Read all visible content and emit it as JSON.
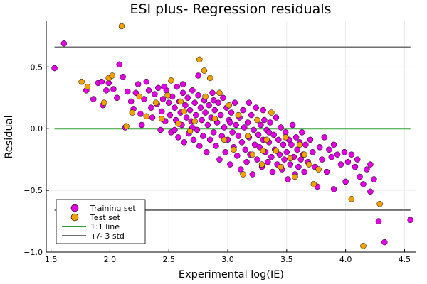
{
  "chart_data": {
    "type": "scatter",
    "title": "ESI plus- Regression residuals",
    "xlabel": "Experimental log(IE)",
    "ylabel": "Residual",
    "xlim": [
      1.46,
      4.6
    ],
    "ylim": [
      -1.0,
      0.87
    ],
    "x_ticks": [
      1.5,
      2.0,
      2.5,
      3.0,
      3.5,
      4.0,
      4.5
    ],
    "x_tick_labels": [
      "1.5",
      "2.0",
      "2.5",
      "3.0",
      "3.5",
      "4.0",
      "4.5"
    ],
    "y_ticks": [
      -1.0,
      -0.5,
      0.0,
      0.5
    ],
    "y_tick_labels": [
      "−1.0",
      "−0.5",
      "0.0",
      "0.5"
    ],
    "grid": true,
    "legend_position": "bottom-left",
    "series": [
      {
        "name": "Training set",
        "kind": "scatter",
        "color": "#e000e0",
        "points": [
          [
            1.53,
            0.49
          ],
          [
            1.61,
            0.69
          ],
          [
            1.8,
            0.31
          ],
          [
            1.86,
            0.24
          ],
          [
            1.9,
            0.37
          ],
          [
            1.93,
            0.38
          ],
          [
            1.94,
            0.19
          ],
          [
            1.97,
            0.31
          ],
          [
            1.99,
            0.37
          ],
          [
            2.03,
            0.32
          ],
          [
            2.06,
            0.25
          ],
          [
            2.08,
            0.52
          ],
          [
            2.11,
            0.42
          ],
          [
            2.13,
            0.01
          ],
          [
            2.15,
            0.3
          ],
          [
            2.18,
            0.22
          ],
          [
            2.2,
            0.16
          ],
          [
            2.22,
            0.29
          ],
          [
            2.24,
            0.36
          ],
          [
            2.26,
            0.12
          ],
          [
            2.27,
            0.03
          ],
          [
            2.29,
            0.24
          ],
          [
            2.31,
            0.38
          ],
          [
            2.33,
            0.31
          ],
          [
            2.35,
            0.17
          ],
          [
            2.36,
            0.09
          ],
          [
            2.38,
            0.28
          ],
          [
            2.4,
            0.2
          ],
          [
            2.41,
            0.33
          ],
          [
            2.43,
            -0.01
          ],
          [
            2.44,
            0.14
          ],
          [
            2.45,
            0.24
          ],
          [
            2.47,
            0.06
          ],
          [
            2.48,
            0.31
          ],
          [
            2.5,
            0.21
          ],
          [
            2.51,
            0.11
          ],
          [
            2.52,
            -0.03
          ],
          [
            2.53,
            0.26
          ],
          [
            2.55,
            0.17
          ],
          [
            2.56,
            0.07
          ],
          [
            2.57,
            0.34
          ],
          [
            2.58,
            -0.07
          ],
          [
            2.59,
            0.22
          ],
          [
            2.6,
            0.13
          ],
          [
            2.61,
            0.03
          ],
          [
            2.62,
            0.29
          ],
          [
            2.63,
            -0.11
          ],
          [
            2.64,
            0.19
          ],
          [
            2.65,
            0.09
          ],
          [
            2.66,
            0.25
          ],
          [
            2.67,
            -0.04
          ],
          [
            2.68,
            0.15
          ],
          [
            2.69,
            0.06
          ],
          [
            2.7,
            0.31
          ],
          [
            2.71,
            -0.09
          ],
          [
            2.72,
            0.21
          ],
          [
            2.73,
            0.11
          ],
          [
            2.74,
            -0.01
          ],
          [
            2.75,
            0.27
          ],
          [
            2.76,
            -0.14
          ],
          [
            2.77,
            0.17
          ],
          [
            2.78,
            0.07
          ],
          [
            2.79,
            -0.06
          ],
          [
            2.8,
            0.23
          ],
          [
            2.81,
            0.13
          ],
          [
            2.82,
            -0.19
          ],
          [
            2.83,
            0.03
          ],
          [
            2.84,
            0.19
          ],
          [
            2.85,
            -0.09
          ],
          [
            2.86,
            0.09
          ],
          [
            2.87,
            0.29
          ],
          [
            2.88,
            -0.03
          ],
          [
            2.89,
            0.15
          ],
          [
            2.9,
            -0.14
          ],
          [
            2.91,
            0.05
          ],
          [
            2.92,
            0.21
          ],
          [
            2.93,
            -0.25
          ],
          [
            2.94,
            0.11
          ],
          [
            2.95,
            -0.06
          ],
          [
            2.96,
            0.25
          ],
          [
            2.97,
            0.01
          ],
          [
            2.98,
            -0.19
          ],
          [
            2.99,
            0.17
          ],
          [
            3.0,
            -0.09
          ],
          [
            3.01,
            0.07
          ],
          [
            3.02,
            -0.29
          ],
          [
            3.03,
            0.13
          ],
          [
            3.04,
            -0.03
          ],
          [
            3.05,
            -0.15
          ],
          [
            3.06,
            0.21
          ],
          [
            3.07,
            0.03
          ],
          [
            3.08,
            -0.22
          ],
          [
            3.09,
            -0.06
          ],
          [
            3.1,
            0.09
          ],
          [
            3.11,
            -0.33
          ],
          [
            3.12,
            -0.11
          ],
          [
            3.13,
            0.15
          ],
          [
            3.14,
            0.01
          ],
          [
            3.15,
            -0.17
          ],
          [
            3.16,
            -0.27
          ],
          [
            3.17,
            0.05
          ],
          [
            3.18,
            -0.07
          ],
          [
            3.19,
            -0.21
          ],
          [
            3.2,
            0.11
          ],
          [
            3.21,
            -0.37
          ],
          [
            3.22,
            -0.01
          ],
          [
            3.23,
            -0.13
          ],
          [
            3.24,
            0.17
          ],
          [
            3.25,
            -0.25
          ],
          [
            3.26,
            -0.05
          ],
          [
            3.27,
            -0.15
          ],
          [
            3.28,
            0.03
          ],
          [
            3.29,
            -0.31
          ],
          [
            3.3,
            -0.09
          ],
          [
            3.31,
            0.07
          ],
          [
            3.32,
            -0.19
          ],
          [
            3.33,
            -0.01
          ],
          [
            3.34,
            -0.27
          ],
          [
            3.35,
            -0.11
          ],
          [
            3.36,
            0.05
          ],
          [
            3.37,
            -0.23
          ],
          [
            3.38,
            -0.35
          ],
          [
            3.39,
            -0.05
          ],
          [
            3.4,
            -0.17
          ],
          [
            3.41,
            0.09
          ],
          [
            3.42,
            -0.29
          ],
          [
            3.43,
            -0.09
          ],
          [
            3.44,
            -0.21
          ],
          [
            3.45,
            0.01
          ],
          [
            3.46,
            -0.33
          ],
          [
            3.47,
            -0.13
          ],
          [
            3.48,
            -0.25
          ],
          [
            3.49,
            -0.03
          ],
          [
            3.5,
            -0.19
          ],
          [
            3.51,
            -0.41
          ],
          [
            3.52,
            -0.09
          ],
          [
            3.53,
            -0.29
          ],
          [
            3.54,
            -0.13
          ],
          [
            3.55,
            0.03
          ],
          [
            3.56,
            -0.23
          ],
          [
            3.57,
            -0.37
          ],
          [
            3.58,
            -0.07
          ],
          [
            3.59,
            -0.17
          ],
          [
            3.6,
            -0.31
          ],
          [
            3.61,
            -0.11
          ],
          [
            3.62,
            -0.25
          ],
          [
            3.63,
            -0.03
          ],
          [
            3.64,
            -0.21
          ],
          [
            3.65,
            -0.35
          ],
          [
            3.66,
            -0.13
          ],
          [
            3.68,
            -0.27
          ],
          [
            3.7,
            -0.09
          ],
          [
            3.72,
            -0.19
          ],
          [
            3.74,
            -0.31
          ],
          [
            3.76,
            -0.47
          ],
          [
            3.78,
            -0.15
          ],
          [
            3.8,
            -0.25
          ],
          [
            3.82,
            -0.07
          ],
          [
            3.84,
            -0.35
          ],
          [
            3.86,
            -0.17
          ],
          [
            3.88,
            -0.23
          ],
          [
            3.9,
            -0.13
          ],
          [
            3.93,
            -0.21
          ],
          [
            3.96,
            -0.29
          ],
          [
            3.99,
            -0.19
          ],
          [
            4.02,
            -0.27
          ],
          [
            4.05,
            -0.21
          ],
          [
            4.08,
            -0.31
          ],
          [
            4.12,
            -0.39
          ],
          [
            4.15,
            -0.45
          ],
          [
            4.18,
            -0.33
          ],
          [
            4.21,
            -0.29
          ],
          [
            4.24,
            -0.41
          ],
          [
            4.28,
            -0.75
          ],
          [
            4.33,
            -0.92
          ],
          [
            4.55,
            -0.74
          ],
          [
            4.21,
            -0.51
          ],
          [
            4.0,
            -0.43
          ],
          [
            3.9,
            -0.49
          ],
          [
            4.1,
            -0.25
          ],
          [
            2.62,
            0.36
          ],
          [
            2.75,
            0.43
          ],
          [
            2.46,
            0.34
          ],
          [
            2.88,
            0.23
          ],
          [
            3.02,
            0.05
          ],
          [
            3.18,
            0.21
          ],
          [
            2.55,
            -0.01
          ],
          [
            2.7,
            0.01
          ],
          [
            3.35,
            -0.03
          ],
          [
            3.3,
            0.15
          ]
        ]
      },
      {
        "name": "Test set",
        "kind": "scatter",
        "color": "#f0a000",
        "points": [
          [
            1.76,
            0.38
          ],
          [
            1.81,
            0.34
          ],
          [
            1.95,
            0.21
          ],
          [
            1.99,
            0.41
          ],
          [
            2.02,
            0.43
          ],
          [
            2.1,
            0.83
          ],
          [
            2.14,
            0.02
          ],
          [
            2.19,
            0.13
          ],
          [
            2.25,
            0.26
          ],
          [
            2.31,
            0.1
          ],
          [
            2.39,
            0.21
          ],
          [
            2.44,
            0.08
          ],
          [
            2.49,
            0.27
          ],
          [
            2.52,
            0.39
          ],
          [
            2.58,
            0.04
          ],
          [
            2.63,
            0.14
          ],
          [
            2.68,
            -0.02
          ],
          [
            2.72,
            0.06
          ],
          [
            2.76,
            0.56
          ],
          [
            2.81,
            0.26
          ],
          [
            2.85,
            0.41
          ],
          [
            2.89,
            0.08
          ],
          [
            2.93,
            0.29
          ],
          [
            2.97,
            -0.09
          ],
          [
            3.01,
            0.19
          ],
          [
            3.05,
            -0.17
          ],
          [
            3.09,
            0.11
          ],
          [
            3.13,
            -0.37
          ],
          [
            3.17,
            -0.06
          ],
          [
            3.21,
            -0.21
          ],
          [
            3.25,
            0.07
          ],
          [
            3.29,
            -0.29
          ],
          [
            3.33,
            -0.09
          ],
          [
            3.37,
            0.13
          ],
          [
            3.41,
            -0.18
          ],
          [
            3.45,
            -0.31
          ],
          [
            3.49,
            -0.07
          ],
          [
            3.53,
            -0.24
          ],
          [
            3.57,
            -0.39
          ],
          [
            3.61,
            -0.13
          ],
          [
            3.65,
            -0.21
          ],
          [
            3.69,
            -0.29
          ],
          [
            3.73,
            -0.45
          ],
          [
            3.77,
            -0.33
          ],
          [
            4.05,
            -0.57
          ],
          [
            4.15,
            -0.95
          ],
          [
            4.29,
            -0.61
          ],
          [
            2.8,
            0.47
          ],
          [
            3.3,
            -0.18
          ],
          [
            2.6,
            0.22
          ]
        ]
      }
    ],
    "lines": [
      {
        "name": "1:1 line",
        "color": "#2ca02c",
        "y": 0.0,
        "x": [
          1.53,
          4.55
        ]
      },
      {
        "name": "+/- 3 std",
        "color": "#707070",
        "y": 0.66,
        "x": [
          1.53,
          4.55
        ]
      },
      {
        "name": "",
        "color": "#707070",
        "y": -0.66,
        "x": [
          1.53,
          4.55
        ]
      }
    ]
  }
}
